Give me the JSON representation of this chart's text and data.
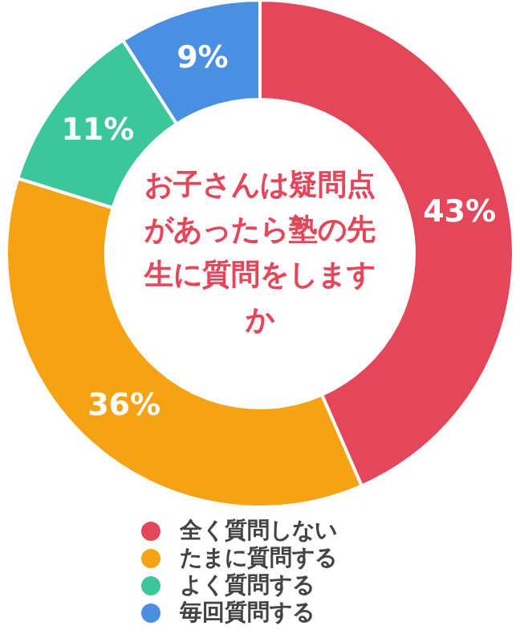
{
  "chart_data": {
    "type": "donut",
    "title": "お子さんは疑問点があったら塾の先生に質問をしますか",
    "categories": [
      "全く質問しない",
      "たまに質問する",
      "よく質問する",
      "毎回質問する"
    ],
    "values": [
      43,
      36,
      11,
      9
    ],
    "colors": [
      "#e5475a",
      "#f5a213",
      "#3cc79a",
      "#4a90e2"
    ],
    "value_labels": [
      "43%",
      "36%",
      "11%",
      "9%"
    ],
    "legend": "bottom"
  }
}
